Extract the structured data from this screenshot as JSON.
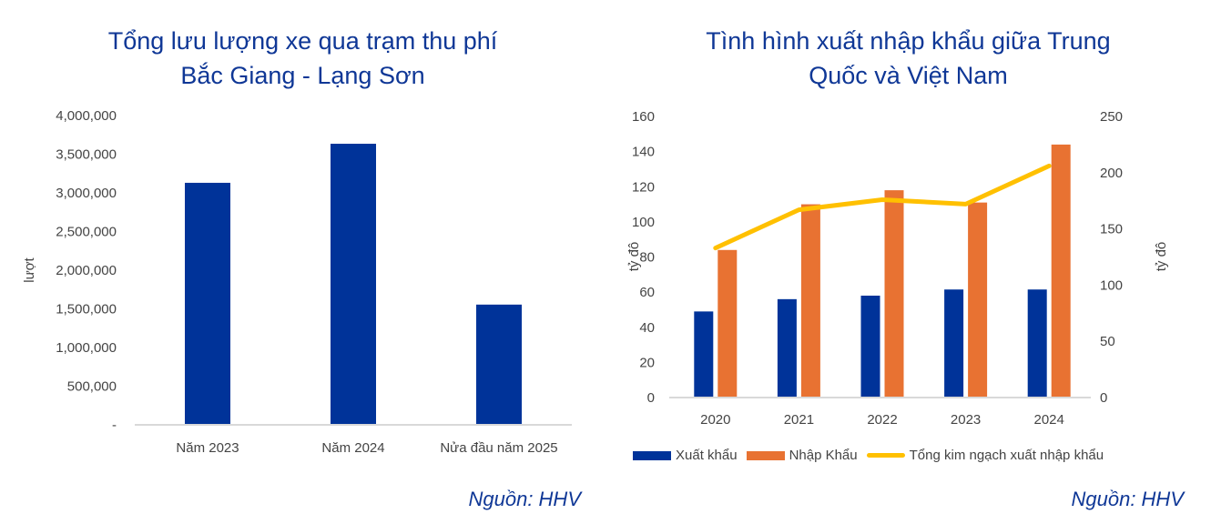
{
  "left": {
    "title_lines": [
      "Tổng lưu lượng xe qua trạm thu phí",
      "Bắc Giang - Lạng Sơn"
    ],
    "source": "Nguồn: HHV"
  },
  "right": {
    "title_lines": [
      "Tình hình xuất nhập khẩu giữa Trung",
      "Quốc và Việt Nam"
    ],
    "source": "Nguồn: HHV"
  },
  "colors": {
    "title": "#0f3796",
    "bar_blue": "#003399",
    "bar_orange": "#e87232",
    "line_yellow": "#ffc000",
    "axis": "#d9d9d9",
    "text": "#444444"
  },
  "chart_data": [
    {
      "type": "bar",
      "title": "Tổng lưu lượng xe qua trạm thu phí Bắc Giang - Lạng Sơn",
      "categories": [
        "Năm 2023",
        "Năm 2024",
        "Nửa đầu năm 2025"
      ],
      "values": [
        3130000,
        3635000,
        1555000
      ],
      "xlabel": "",
      "ylabel": "lượt",
      "ylim": [
        0,
        4000000
      ],
      "yticks": [
        0,
        500000,
        1000000,
        1500000,
        2000000,
        2500000,
        3000000,
        3500000,
        4000000
      ],
      "ytick_labels": [
        "-",
        "500,000",
        "1,000,000",
        "1,500,000",
        "2,000,000",
        "2,500,000",
        "3,000,000",
        "3,500,000",
        "4,000,000"
      ],
      "grid": false,
      "legend": "none"
    },
    {
      "type": "bar",
      "title": "Tình hình xuất nhập khẩu giữa Trung Quốc và Việt Nam",
      "categories": [
        "2020",
        "2021",
        "2022",
        "2023",
        "2024"
      ],
      "series": [
        {
          "name": "Xuất khẩu",
          "type": "bar",
          "axis": "left",
          "values": [
            49,
            56,
            58,
            61.5,
            61.5
          ]
        },
        {
          "name": "Nhập Khẩu",
          "type": "bar",
          "axis": "left",
          "values": [
            84,
            110,
            118,
            111,
            144
          ]
        },
        {
          "name": "Tổng kim ngạch xuất nhập khẩu",
          "type": "line",
          "axis": "right",
          "values": [
            133,
            167,
            176,
            172,
            206
          ]
        }
      ],
      "ylabel": "tỷ đô",
      "ylim": [
        0,
        160
      ],
      "yticks": [
        0,
        20,
        40,
        60,
        80,
        100,
        120,
        140,
        160
      ],
      "y2label": "tỷ đô",
      "y2lim": [
        0,
        250
      ],
      "y2ticks": [
        0,
        50,
        100,
        150,
        200,
        250
      ],
      "grid": false,
      "legend": "bottom"
    }
  ]
}
